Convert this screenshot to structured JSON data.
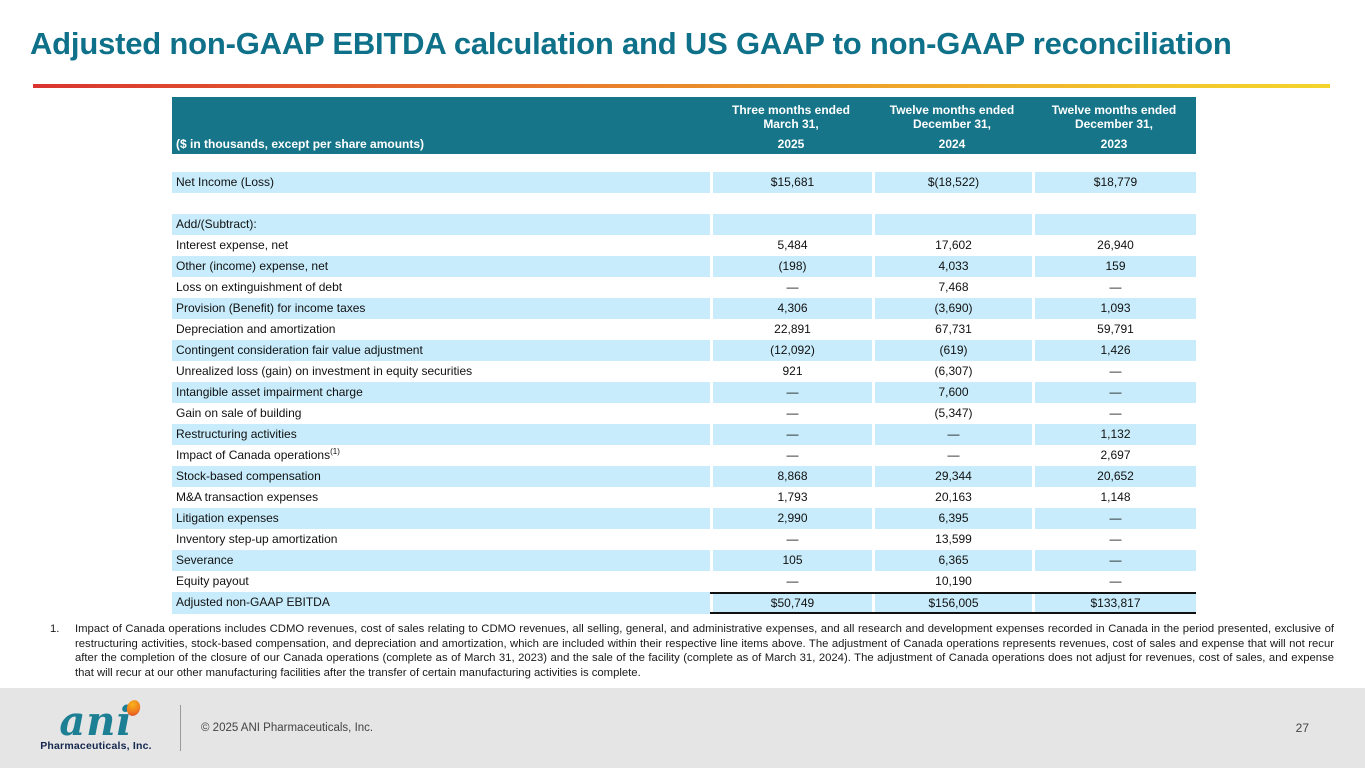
{
  "title": "Adjusted non-GAAP EBITDA calculation and US GAAP to non-GAAP reconciliation",
  "accent_colors": {
    "rule_gradient_start": "#d93430",
    "rule_gradient_end": "#f4d42c",
    "header_teal": "#17758a",
    "row_highlight_blue": "#c8ecfb",
    "title_teal": "#0f7189"
  },
  "table": {
    "corner_label": "($ in thousands, except per share amounts)",
    "columns": [
      {
        "period": "Three months ended",
        "date": "March 31,",
        "year": "2025"
      },
      {
        "period": "Twelve months ended",
        "date": "December 31,",
        "year": "2024"
      },
      {
        "period": "Twelve months ended",
        "date": "December 31,",
        "year": "2023"
      }
    ],
    "rows": [
      {
        "label": "Net Income (Loss)",
        "values": [
          "$15,681",
          "$(18,522)",
          "$18,779"
        ],
        "shaded": true
      },
      {
        "spacer": true,
        "label": "",
        "values": [
          "",
          "",
          ""
        ]
      },
      {
        "label": "Add/(Subtract):",
        "values": [
          "",
          "",
          ""
        ],
        "shaded": true
      },
      {
        "label": "Interest expense, net",
        "values": [
          "5,484",
          "17,602",
          "26,940"
        ],
        "shaded": false
      },
      {
        "label": "Other (income) expense, net",
        "values": [
          "(198)",
          "4,033",
          "159"
        ],
        "shaded": true
      },
      {
        "label": "Loss on extinguishment of debt",
        "values": [
          "—",
          "7,468",
          "—"
        ],
        "shaded": false
      },
      {
        "label": "Provision (Benefit) for income taxes",
        "values": [
          "4,306",
          "(3,690)",
          "1,093"
        ],
        "shaded": true
      },
      {
        "label": "Depreciation and amortization",
        "values": [
          "22,891",
          "67,731",
          "59,791"
        ],
        "shaded": false
      },
      {
        "label": "Contingent consideration fair value adjustment",
        "values": [
          "(12,092)",
          "(619)",
          "1,426"
        ],
        "shaded": true
      },
      {
        "label": "Unrealized loss (gain) on investment in equity securities",
        "values": [
          "921",
          "(6,307)",
          "—"
        ],
        "shaded": false
      },
      {
        "label": "Intangible asset impairment charge",
        "values": [
          "—",
          "7,600",
          "—"
        ],
        "shaded": true
      },
      {
        "label": "Gain on sale of building",
        "values": [
          "—",
          "(5,347)",
          "—"
        ],
        "shaded": false
      },
      {
        "label": "Restructuring activities",
        "values": [
          "—",
          "—",
          "1,132"
        ],
        "shaded": true
      },
      {
        "label": "Impact of Canada operations",
        "sup": "(1)",
        "values": [
          "—",
          "—",
          "2,697"
        ],
        "shaded": false
      },
      {
        "label": "Stock-based compensation",
        "values": [
          "8,868",
          "29,344",
          "20,652"
        ],
        "shaded": true
      },
      {
        "label": "M&A transaction expenses",
        "values": [
          "1,793",
          "20,163",
          "1,148"
        ],
        "shaded": false
      },
      {
        "label": "Litigation expenses",
        "values": [
          "2,990",
          "6,395",
          "—"
        ],
        "shaded": true
      },
      {
        "label": "Inventory step-up amortization",
        "values": [
          "—",
          "13,599",
          "—"
        ],
        "shaded": false
      },
      {
        "label": "Severance",
        "values": [
          "105",
          "6,365",
          "—"
        ],
        "shaded": true
      },
      {
        "label": "Equity payout",
        "values": [
          "—",
          "10,190",
          "—"
        ],
        "shaded": false
      },
      {
        "label": "Adjusted non-GAAP EBITDA",
        "values": [
          "$50,749",
          "$156,005",
          "$133,817"
        ],
        "shaded": true,
        "total": true
      }
    ]
  },
  "footnote": {
    "number": "1.",
    "text": "Impact of Canada operations includes CDMO revenues, cost of sales relating to CDMO revenues, all selling, general, and administrative expenses, and all research and development expenses recorded in Canada in the period presented, exclusive of restructuring activities, stock-based compensation, and depreciation and amortization, which are included within their respective line items above. The adjustment of Canada operations represents revenues, cost of sales and expense that will not recur after the completion of the closure of our Canada operations (complete as of March 31, 2023) and the sale of the facility (complete as of March 31, 2024). The adjustment of Canada operations does not adjust for revenues, cost of sales, and expense that will recur at our other manufacturing facilities after the transfer of certain manufacturing activities is complete."
  },
  "footer": {
    "logo_word": "ani",
    "logo_sub": "Pharmaceuticals, Inc.",
    "copyright": "© 2025 ANI Pharmaceuticals, Inc.",
    "page_number": "27"
  }
}
